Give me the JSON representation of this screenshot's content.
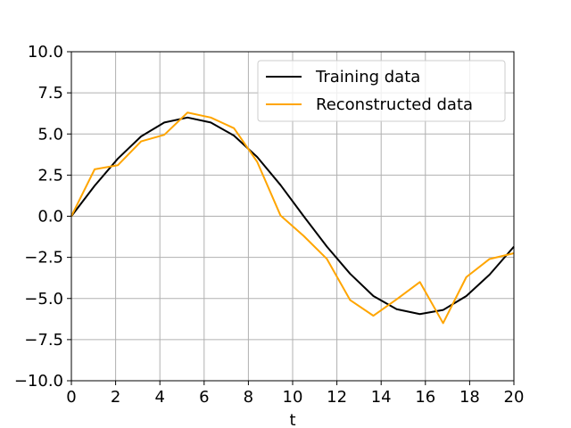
{
  "chart_data": {
    "type": "line",
    "title": "",
    "xlabel": "t",
    "ylabel": "",
    "xlim": [
      0,
      20
    ],
    "ylim": [
      -10,
      10
    ],
    "xticks": [
      0,
      2,
      4,
      6,
      8,
      10,
      12,
      14,
      16,
      18,
      20
    ],
    "yticks": [
      -10.0,
      -7.5,
      -5.0,
      -2.5,
      0.0,
      2.5,
      5.0,
      7.5,
      10.0
    ],
    "xtick_labels": [
      "0",
      "2",
      "4",
      "6",
      "8",
      "10",
      "12",
      "14",
      "16",
      "18",
      "20"
    ],
    "ytick_labels": [
      "−10.0",
      "−7.5",
      "−5.0",
      "−2.5",
      "0.0",
      "2.5",
      "5.0",
      "7.5",
      "10.0"
    ],
    "grid": true,
    "legend_position": "top-right",
    "series": [
      {
        "name": "Training data",
        "color": "#000000",
        "x": [
          0,
          1.05,
          2.1,
          3.15,
          4.2,
          5.25,
          6.3,
          7.35,
          8.4,
          9.45,
          10.5,
          11.55,
          12.6,
          13.65,
          14.7,
          15.75,
          16.8,
          17.85,
          18.9,
          20.0
        ],
        "y": [
          0.0,
          1.85,
          3.5,
          4.85,
          5.7,
          6.0,
          5.7,
          4.9,
          3.6,
          1.9,
          0.0,
          -1.85,
          -3.5,
          -4.85,
          -5.65,
          -5.95,
          -5.7,
          -4.85,
          -3.55,
          -1.85
        ]
      },
      {
        "name": "Reconstructed data",
        "color": "#ffa500",
        "x": [
          0,
          1.05,
          2.1,
          3.15,
          4.2,
          5.25,
          6.3,
          7.35,
          8.4,
          9.45,
          10.5,
          11.55,
          12.6,
          13.65,
          14.7,
          15.75,
          16.8,
          17.85,
          18.9,
          20.0
        ],
        "y": [
          0.0,
          2.85,
          3.1,
          4.55,
          4.95,
          6.3,
          6.0,
          5.35,
          3.3,
          0.05,
          -1.2,
          -2.6,
          -5.1,
          -6.05,
          -5.05,
          -4.0,
          -6.5,
          -3.7,
          -2.6,
          -2.25
        ]
      }
    ]
  }
}
